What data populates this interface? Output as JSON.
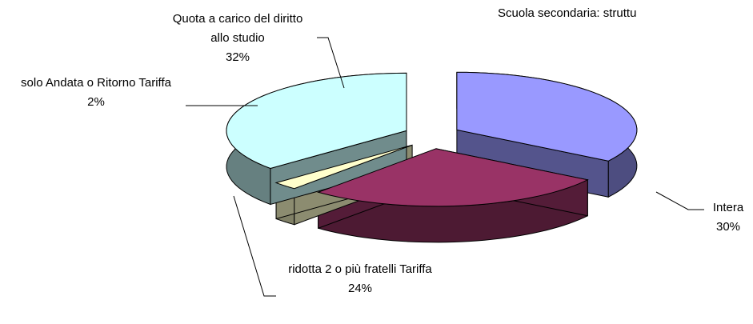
{
  "chart_data": {
    "type": "pie3d",
    "title": "Scuola secondaria: struttu",
    "categories": [
      "Intera",
      "ridotta 2 o più fratelli Tariffa",
      "solo Andata o Ritorno Tariffa",
      "Quota a carico del diritto allo studio"
    ],
    "values": [
      30,
      24,
      2,
      32
    ],
    "value_labels": [
      "30%",
      "24%",
      "2%",
      "32%"
    ],
    "colors": [
      "#9999ff",
      "#993366",
      "#ffffcc",
      "#ccffff"
    ]
  }
}
